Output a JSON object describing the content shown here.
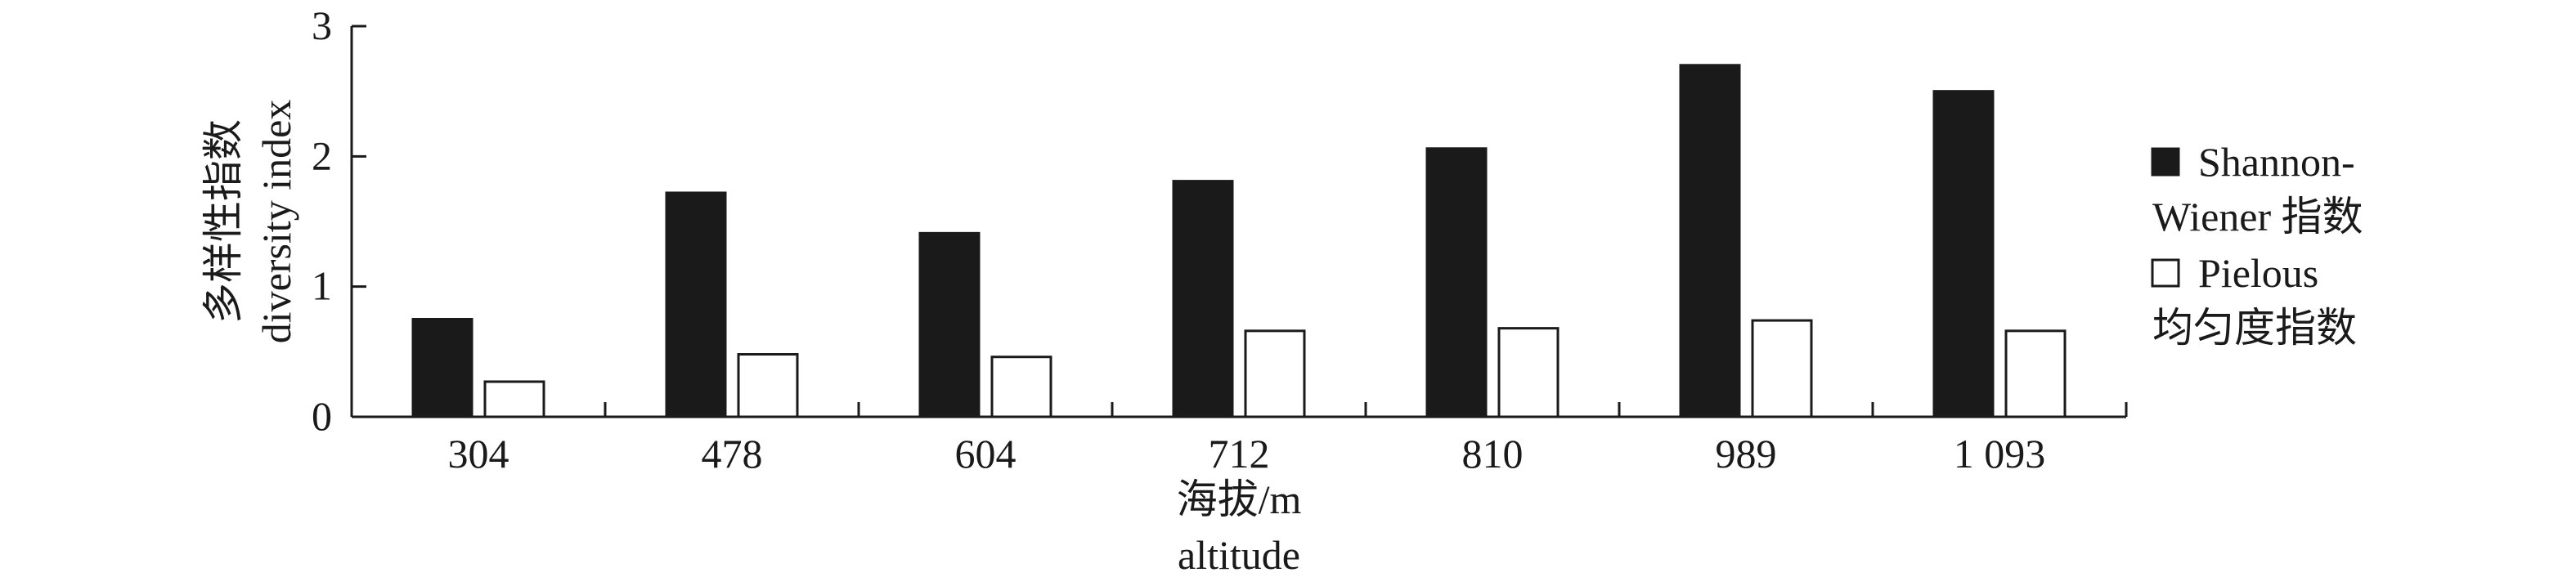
{
  "chart_data": {
    "type": "bar",
    "categories": [
      "304",
      "478",
      "604",
      "712",
      "810",
      "989",
      "1 093"
    ],
    "series": [
      {
        "name": "Shannon-Wiener 指数",
        "color": "#1a1a1a",
        "values": [
          0.75,
          1.72,
          1.41,
          1.81,
          2.06,
          2.7,
          2.5
        ]
      },
      {
        "name": "Pielous 均匀度指数",
        "color": "#ffffff",
        "values": [
          0.27,
          0.48,
          0.46,
          0.66,
          0.68,
          0.74,
          0.66
        ]
      }
    ],
    "legend": {
      "position": "right",
      "entries": [
        {
          "lines": [
            "Shannon-",
            "Wiener 指数"
          ]
        },
        {
          "lines": [
            "Pielous",
            "均匀度指数"
          ]
        }
      ]
    },
    "xlabel": {
      "line1": "海拔/m",
      "line2": "altitude"
    },
    "ylabel": {
      "line1": "多样性指数",
      "line2": "diversity index"
    },
    "ylim": [
      0,
      3
    ],
    "yticks": [
      "0",
      "1",
      "2",
      "3"
    ]
  }
}
